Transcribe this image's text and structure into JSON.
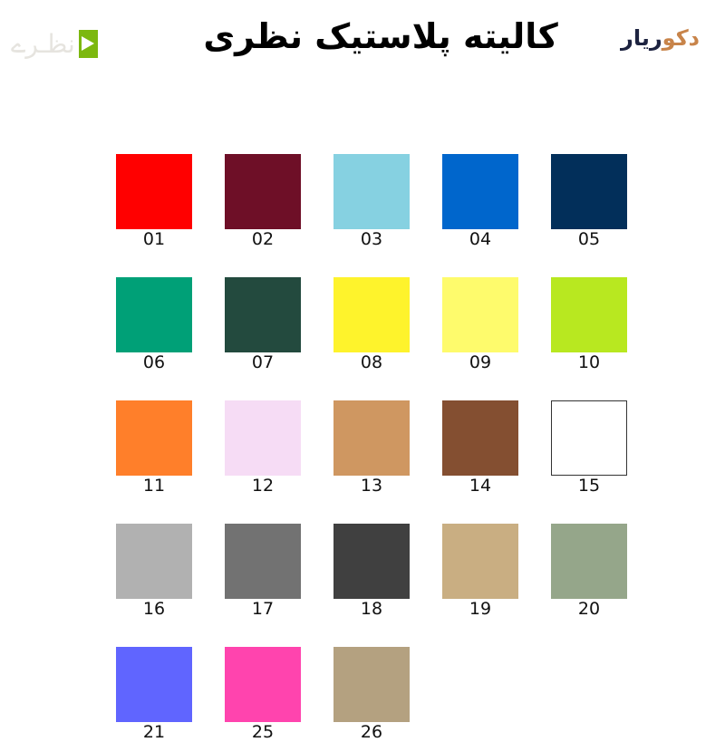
{
  "header": {
    "title": "کالیته پلاستیک نظری",
    "logo_right": {
      "part1": "دکو",
      "part2": "ریار"
    },
    "logo_left": {
      "text": "نظـرے",
      "icon": "green-square-logo-icon"
    }
  },
  "swatches": [
    {
      "code": "01",
      "color": "#ff0000"
    },
    {
      "code": "02",
      "color": "#6e0f27"
    },
    {
      "code": "03",
      "color": "#86d1e1"
    },
    {
      "code": "04",
      "color": "#0066cc"
    },
    {
      "code": "05",
      "color": "#022f5a"
    },
    {
      "code": "06",
      "color": "#00a077"
    },
    {
      "code": "07",
      "color": "#234a3e"
    },
    {
      "code": "08",
      "color": "#fef32c"
    },
    {
      "code": "09",
      "color": "#fefb6c"
    },
    {
      "code": "10",
      "color": "#b8e820"
    },
    {
      "code": "11",
      "color": "#ff7f2a"
    },
    {
      "code": "12",
      "color": "#f6dcf5"
    },
    {
      "code": "13",
      "color": "#cf9761"
    },
    {
      "code": "14",
      "color": "#844f31"
    },
    {
      "code": "15",
      "color": "#ffffff"
    },
    {
      "code": "16",
      "color": "#b1b1b1"
    },
    {
      "code": "17",
      "color": "#727272"
    },
    {
      "code": "18",
      "color": "#404040"
    },
    {
      "code": "19",
      "color": "#c9ae82"
    },
    {
      "code": "20",
      "color": "#95a68a"
    },
    {
      "code": "21",
      "color": "#6065ff"
    },
    {
      "code": "25",
      "color": "#ff44ae"
    },
    {
      "code": "26",
      "color": "#b4a180"
    }
  ]
}
